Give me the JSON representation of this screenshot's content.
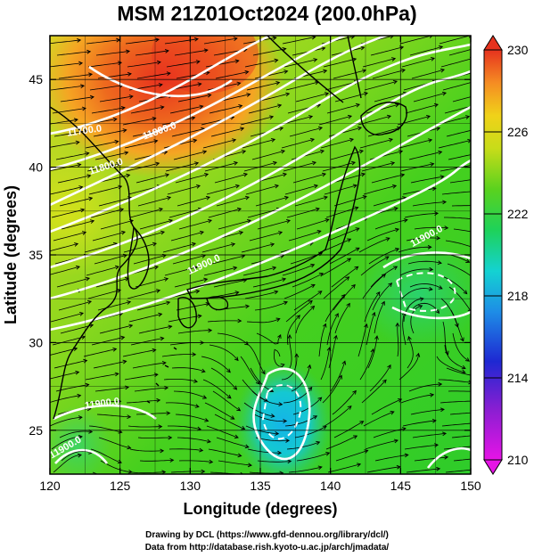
{
  "title": "MSM 21Z01Oct2024 (200.0hPa)",
  "axes": {
    "xlabel": "Longitude (degrees)",
    "ylabel": "Latitude  (degrees)",
    "x_ticks": [
      "120",
      "125",
      "130",
      "135",
      "140",
      "145",
      "150"
    ],
    "y_ticks": [
      "25",
      "30",
      "35",
      "40",
      "45"
    ]
  },
  "colorbar": {
    "ticks": [
      "210",
      "214",
      "218",
      "222",
      "226",
      "230"
    ]
  },
  "contour_labels": [
    "11800.0",
    "11800.0",
    "11700.0",
    "11900.0",
    "11900.0",
    "11900.0",
    "11900.0"
  ],
  "credits": {
    "line1": "Drawing by DCL (https://www.gfd-dennou.org/library/dcl/)",
    "line2": "Data from http://database.rish.kyoto-u.ac.jp/arch/jmadata/"
  },
  "chart_data": {
    "type": "heatmap",
    "field": "temperature with streamlines and height contours",
    "xlim": [
      120,
      150
    ],
    "ylim": [
      22.5,
      47.5
    ],
    "x_ticks": [
      120,
      125,
      130,
      135,
      140,
      145,
      150
    ],
    "y_ticks": [
      25,
      30,
      35,
      40,
      45
    ],
    "color_range": [
      210,
      230
    ],
    "colorbar_ticks": [
      210,
      214,
      218,
      222,
      226,
      230
    ],
    "colors": {
      "warm_max": "#e8321e",
      "orange": "#f5a523",
      "yellow": "#e8e619",
      "green": "#2ecc1e",
      "cyan": "#14c8d2",
      "blue": "#1e3cd2",
      "magenta": "#c814c8"
    },
    "features": {
      "warm_center_lon_lat": [
        127.5,
        45.5
      ],
      "cold_center_lon_lat": [
        136.5,
        25.5
      ],
      "anticyclone_center_lon_lat": [
        146.5,
        34.0
      ]
    }
  }
}
